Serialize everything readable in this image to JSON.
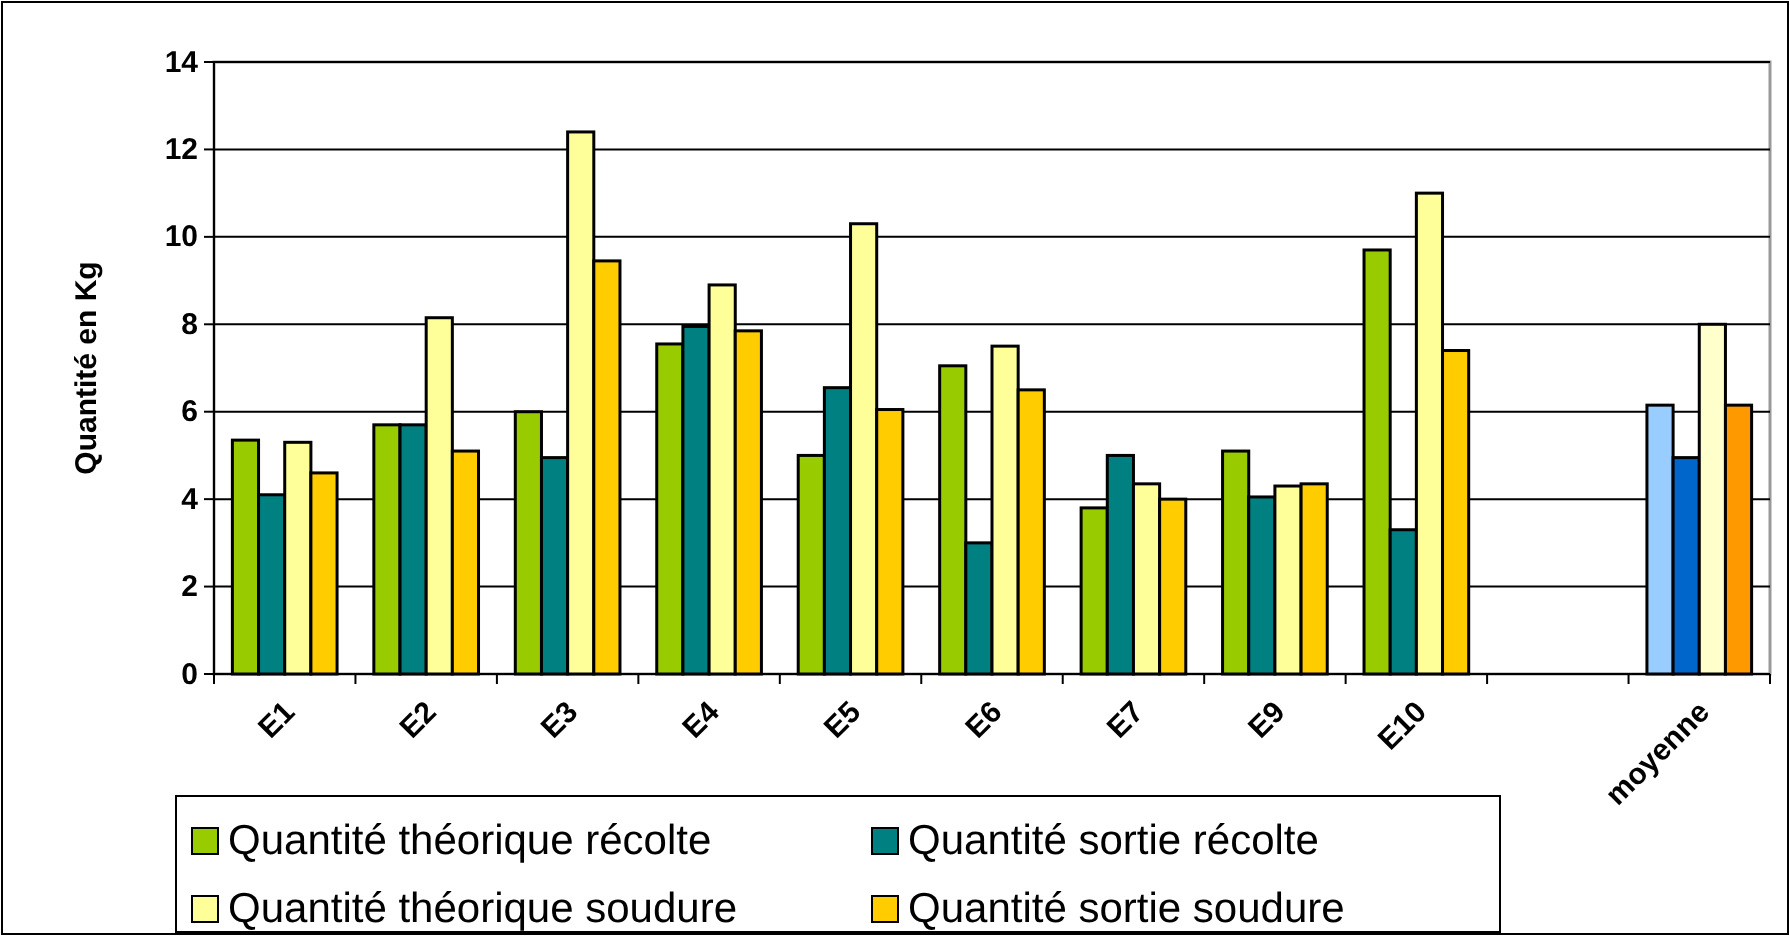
{
  "chart_data": {
    "type": "bar",
    "ylabel": "Quantité en Kg",
    "categories": [
      "E1",
      "E2",
      "E3",
      "E4",
      "E5",
      "E6",
      "E7",
      "E9",
      "E10",
      null,
      "moyenne"
    ],
    "series": [
      {
        "name": "Quantité théorique récolte",
        "color": "#99cc00",
        "colors": [
          "#99cc00",
          "#99cc00",
          "#99cc00",
          "#99cc00",
          "#99cc00",
          "#99cc00",
          "#99cc00",
          "#99cc00",
          "#99cc00",
          null,
          "#99ccff"
        ],
        "values": [
          5.35,
          5.7,
          6.0,
          7.55,
          5.0,
          7.05,
          3.8,
          5.1,
          9.7,
          null,
          6.15
        ]
      },
      {
        "name": "Quantité sortie récolte",
        "color": "#008080",
        "colors": [
          "#008080",
          "#008080",
          "#008080",
          "#008080",
          "#008080",
          "#008080",
          "#008080",
          "#008080",
          "#008080",
          null,
          "#0066cc"
        ],
        "values": [
          4.1,
          5.7,
          4.95,
          7.95,
          6.55,
          3.0,
          5.0,
          4.05,
          3.3,
          null,
          4.95
        ]
      },
      {
        "name": "Quantité théorique soudure",
        "color": "#ffff99",
        "colors": [
          "#ffff99",
          "#ffff99",
          "#ffff99",
          "#ffff99",
          "#ffff99",
          "#ffff99",
          "#ffff99",
          "#ffff99",
          "#ffff99",
          null,
          "#ffffcc"
        ],
        "values": [
          5.3,
          8.15,
          12.4,
          8.9,
          10.3,
          7.5,
          4.35,
          4.3,
          11.0,
          null,
          8.0
        ]
      },
      {
        "name": "Quantité sortie soudure",
        "color": "#ffcc00",
        "colors": [
          "#ffcc00",
          "#ffcc00",
          "#ffcc00",
          "#ffcc00",
          "#ffcc00",
          "#ffcc00",
          "#ffcc00",
          "#ffcc00",
          "#ffcc00",
          null,
          "#ff9900"
        ],
        "values": [
          4.6,
          5.1,
          9.45,
          7.85,
          6.05,
          6.5,
          4.0,
          4.35,
          7.4,
          null,
          6.15
        ]
      }
    ],
    "ylim": [
      0,
      14
    ],
    "yticks": [
      0,
      2,
      4,
      6,
      8,
      10,
      12,
      14
    ],
    "grid": "y",
    "legend": "bottom left"
  }
}
